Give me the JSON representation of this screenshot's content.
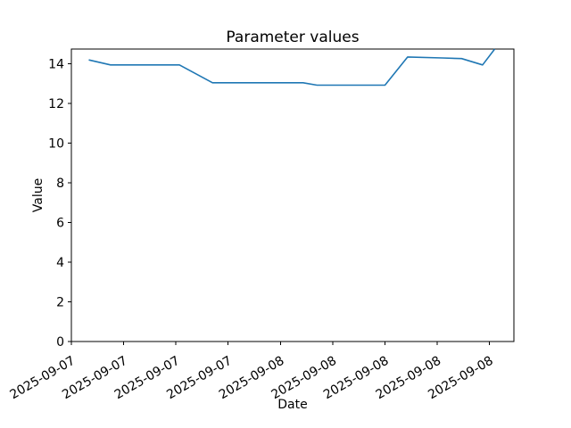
{
  "chart": {
    "title": "Parameter values",
    "xlabel": "Date",
    "ylabel": "Value"
  },
  "chart_data": {
    "type": "line",
    "title": "Parameter values",
    "xlabel": "Date",
    "ylabel": "Value",
    "grid": false,
    "legend": "none",
    "line_color": "#1f77b4",
    "x_axis": {
      "unit": "hours after first tick (2025-09-07, ticks every 3 hours)",
      "lim": [
        0,
        25.4
      ],
      "tick_positions": [
        0,
        3,
        6,
        9,
        12,
        15,
        18,
        21,
        24
      ],
      "tick_labels": [
        "2025-09-07",
        "2025-09-07",
        "2025-09-07",
        "2025-09-07",
        "2025-09-08",
        "2025-09-08",
        "2025-09-08",
        "2025-09-08",
        "2025-09-08"
      ],
      "tick_rotation_deg": 30
    },
    "y_axis": {
      "lim": [
        0,
        14.75
      ],
      "tick_positions": [
        0,
        2,
        4,
        6,
        8,
        10,
        12,
        14
      ],
      "tick_labels": [
        "0",
        "2",
        "4",
        "6",
        "8",
        "10",
        "12",
        "14"
      ]
    },
    "series": [
      {
        "name": "parameter-values",
        "color": "#1f77b4",
        "points": [
          {
            "t": 1.0,
            "v": 14.2
          },
          {
            "t": 2.25,
            "v": 13.95
          },
          {
            "t": 6.2,
            "v": 13.95
          },
          {
            "t": 8.1,
            "v": 13.05
          },
          {
            "t": 13.3,
            "v": 13.05
          },
          {
            "t": 14.1,
            "v": 12.93
          },
          {
            "t": 18.0,
            "v": 12.93
          },
          {
            "t": 19.3,
            "v": 14.35
          },
          {
            "t": 21.3,
            "v": 14.3
          },
          {
            "t": 22.4,
            "v": 14.27
          },
          {
            "t": 23.6,
            "v": 13.95
          },
          {
            "t": 24.3,
            "v": 14.75
          }
        ]
      }
    ]
  }
}
